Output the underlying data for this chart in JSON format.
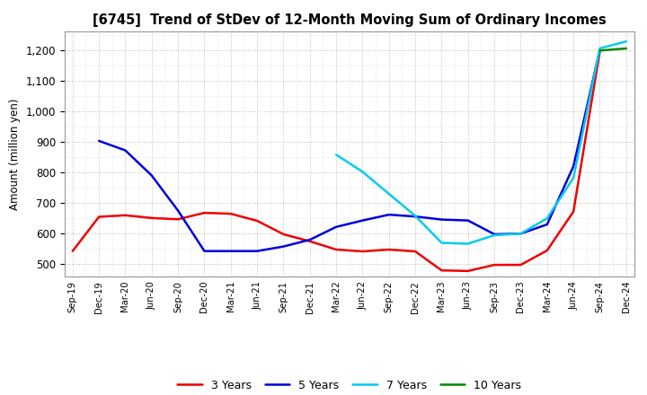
{
  "title": "[6745]  Trend of StDev of 12-Month Moving Sum of Ordinary Incomes",
  "ylabel": "Amount (million yen)",
  "ylim": [
    460,
    1260
  ],
  "yticks": [
    500,
    600,
    700,
    800,
    900,
    1000,
    1100,
    1200
  ],
  "background_color": "#ffffff",
  "plot_bg_color": "#ffffff",
  "grid_color": "#bbbbbb",
  "x_labels": [
    "Sep-19",
    "Dec-19",
    "Mar-20",
    "Jun-20",
    "Sep-20",
    "Dec-20",
    "Mar-21",
    "Jun-21",
    "Sep-21",
    "Dec-21",
    "Mar-22",
    "Jun-22",
    "Sep-22",
    "Dec-22",
    "Mar-23",
    "Jun-23",
    "Sep-23",
    "Dec-23",
    "Mar-24",
    "Jun-24",
    "Sep-24",
    "Dec-24"
  ],
  "series": {
    "3 Years": {
      "color": "#ee0000",
      "linewidth": 1.8,
      "values": [
        543,
        655,
        660,
        651,
        647,
        668,
        665,
        642,
        598,
        575,
        548,
        542,
        548,
        542,
        480,
        478,
        498,
        498,
        545,
        672,
        1195,
        null
      ]
    },
    "5 Years": {
      "color": "#0000dd",
      "linewidth": 1.8,
      "values": [
        null,
        903,
        872,
        790,
        675,
        543,
        543,
        543,
        558,
        580,
        622,
        643,
        662,
        656,
        646,
        643,
        598,
        600,
        630,
        820,
        1200,
        null
      ]
    },
    "7 Years": {
      "color": "#00ccee",
      "linewidth": 1.8,
      "values": [
        null,
        null,
        null,
        null,
        null,
        null,
        null,
        null,
        null,
        null,
        858,
        802,
        730,
        658,
        570,
        567,
        595,
        600,
        650,
        782,
        1205,
        1228
      ]
    },
    "10 Years": {
      "color": "#008800",
      "linewidth": 1.8,
      "values": [
        null,
        null,
        null,
        null,
        null,
        null,
        null,
        null,
        null,
        null,
        null,
        null,
        null,
        null,
        null,
        null,
        null,
        null,
        null,
        null,
        1198,
        1205
      ]
    }
  },
  "legend_order": [
    "3 Years",
    "5 Years",
    "7 Years",
    "10 Years"
  ]
}
